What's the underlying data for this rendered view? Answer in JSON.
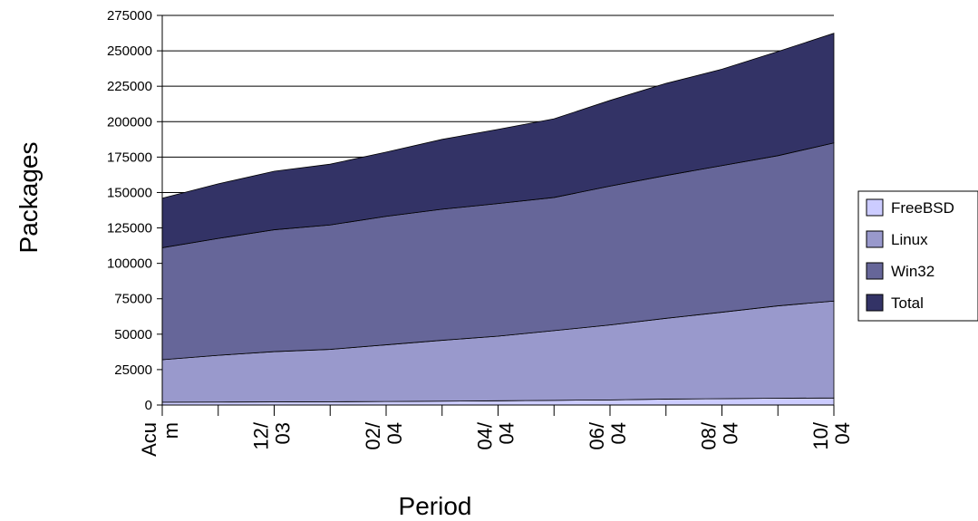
{
  "chart_data": {
    "type": "area",
    "stacked": true,
    "xlabel": "Period",
    "ylabel": "Packages",
    "ylim": [
      0,
      275000
    ],
    "yticks": [
      0,
      25000,
      50000,
      75000,
      100000,
      125000,
      150000,
      175000,
      200000,
      225000,
      250000,
      275000
    ],
    "ytick_labels": [
      "0",
      "25000",
      "50000",
      "75000",
      "100000",
      "125000",
      "150000",
      "175000",
      "200000",
      "225000",
      "250000",
      "275000"
    ],
    "grid": true,
    "legend_position": "right",
    "x_tick_labels": [
      {
        "index": 0,
        "lines": [
          "Acu",
          "m"
        ]
      },
      {
        "index": 2,
        "lines": [
          "12/",
          "03"
        ]
      },
      {
        "index": 4,
        "lines": [
          "02/",
          "04"
        ]
      },
      {
        "index": 6,
        "lines": [
          "04/",
          "04"
        ]
      },
      {
        "index": 8,
        "lines": [
          "06/",
          "04"
        ]
      },
      {
        "index": 10,
        "lines": [
          "08/",
          "04"
        ]
      },
      {
        "index": 12,
        "lines": [
          "10/",
          "04"
        ]
      }
    ],
    "n_points": 13,
    "series": [
      {
        "name": "FreeBSD",
        "color": "#ccccff",
        "values": [
          2000,
          2100,
          2200,
          2300,
          2500,
          2700,
          3000,
          3300,
          3600,
          4200,
          4500,
          4800,
          5000
        ]
      },
      {
        "name": "Linux",
        "color": "#9999cc",
        "values": [
          30000,
          33000,
          35500,
          37000,
          40000,
          43000,
          45600,
          49200,
          52900,
          57000,
          61000,
          65200,
          68400
        ]
      },
      {
        "name": "Win32",
        "color": "#666699",
        "values": [
          79000,
          82500,
          86000,
          87800,
          90700,
          92500,
          93600,
          94000,
          98000,
          100800,
          103500,
          106000,
          111600
        ]
      },
      {
        "name": "Total",
        "color": "#333366",
        "values": [
          35000,
          38500,
          41300,
          42900,
          45300,
          49300,
          52400,
          55500,
          60500,
          65000,
          68000,
          73500,
          77400
        ]
      }
    ]
  }
}
